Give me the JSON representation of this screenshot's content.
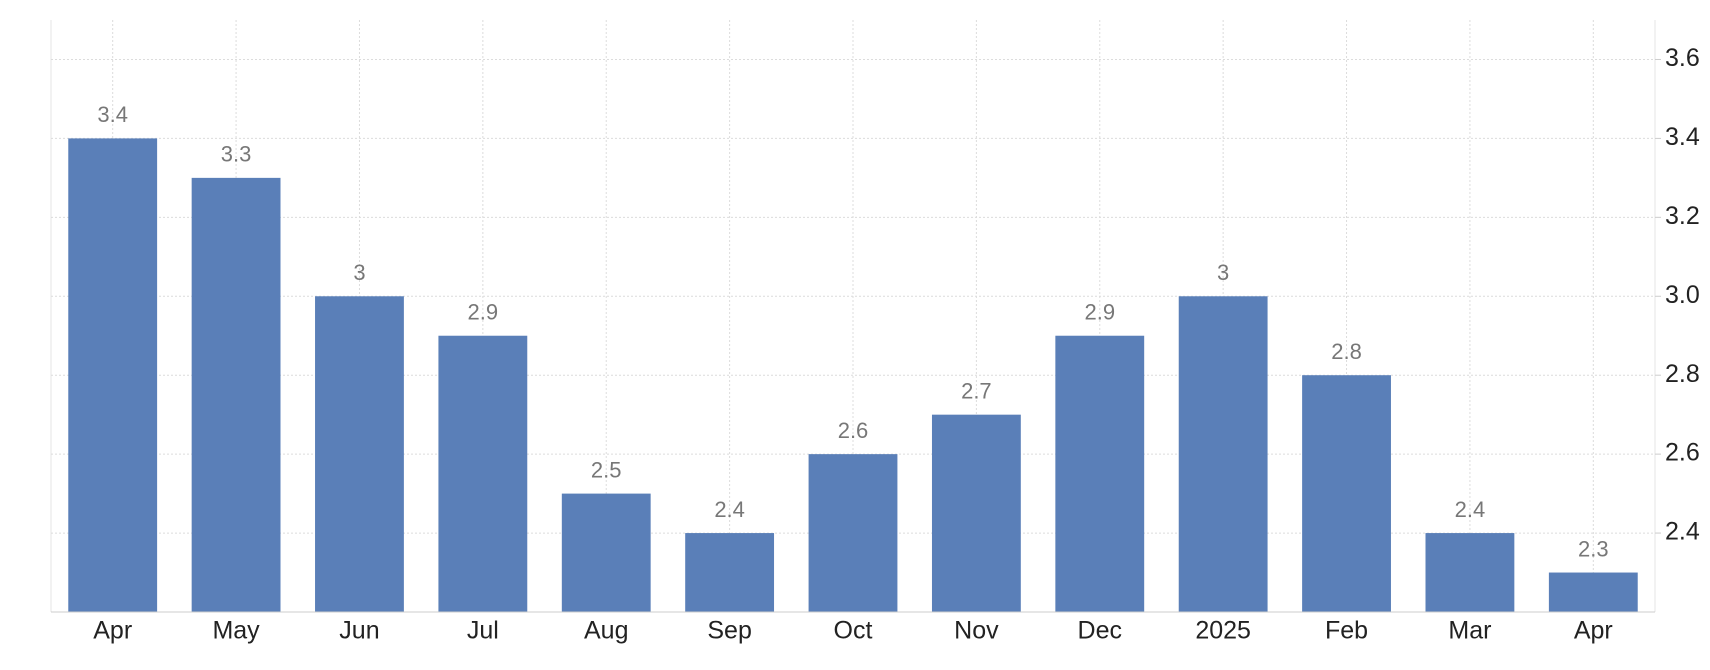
{
  "chart_data": {
    "type": "bar",
    "categories": [
      "Apr",
      "May",
      "Jun",
      "Jul",
      "Aug",
      "Sep",
      "Oct",
      "Nov",
      "Dec",
      "2025",
      "Feb",
      "Mar",
      "Apr"
    ],
    "values": [
      3.4,
      3.3,
      3,
      2.9,
      2.5,
      2.4,
      2.6,
      2.7,
      2.9,
      3,
      2.8,
      2.4,
      2.3
    ],
    "color": "#5a7fb8",
    "ylim": [
      2.2,
      3.7
    ],
    "yticks": [
      2.4,
      2.6,
      2.8,
      {
        "value": 3,
        "label": "3.0"
      },
      3.2,
      3.4,
      3.6
    ],
    "grid": true
  }
}
